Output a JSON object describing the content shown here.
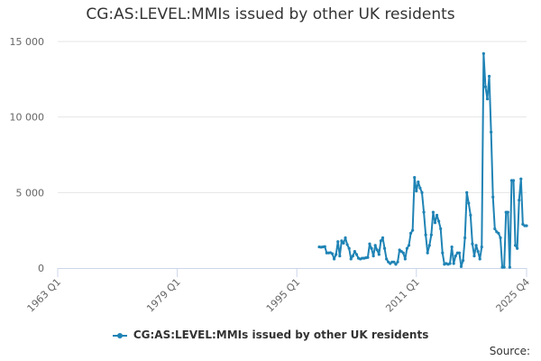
{
  "page": {
    "title": "CG:AS:LEVEL:MMIs issued by other UK residents",
    "credits": "Source:"
  },
  "colors": {
    "series": "#1f83b5",
    "grid": "#e6e6e6",
    "axis": "#ccd6eb"
  },
  "chart_data": {
    "type": "line",
    "title": "CG:AS:LEVEL:MMIs issued by other UK residents",
    "xlabel": "",
    "ylabel": "",
    "x_tick_labels": [
      "1963 Q1",
      "1979 Q1",
      "1995 Q1",
      "2011 Q1",
      "2025 Q4"
    ],
    "y_tick_labels": [
      "0",
      "5 000",
      "10 000",
      "15 000"
    ],
    "ylim": [
      0,
      15000
    ],
    "xlim": [
      "1963 Q1",
      "2025 Q4"
    ],
    "grid": true,
    "legend": "bottom-center",
    "series": [
      {
        "name": "CG:AS:LEVEL:MMIs issued by other UK residents",
        "points": [
          [
            "1998 Q1",
            1400
          ],
          [
            "1998 Q2",
            1380
          ],
          [
            "1998 Q3",
            1400
          ],
          [
            "1998 Q4",
            1420
          ],
          [
            "1999 Q1",
            1000
          ],
          [
            "1999 Q2",
            1000
          ],
          [
            "1999 Q3",
            1020
          ],
          [
            "1999 Q4",
            950
          ],
          [
            "2000 Q1",
            600
          ],
          [
            "2000 Q2",
            900
          ],
          [
            "2000 Q3",
            1750
          ],
          [
            "2000 Q4",
            800
          ],
          [
            "2001 Q1",
            1800
          ],
          [
            "2001 Q2",
            1650
          ],
          [
            "2001 Q3",
            2000
          ],
          [
            "2001 Q4",
            1550
          ],
          [
            "2002 Q1",
            1300
          ],
          [
            "2002 Q2",
            600
          ],
          [
            "2002 Q3",
            800
          ],
          [
            "2002 Q4",
            1100
          ],
          [
            "2003 Q1",
            900
          ],
          [
            "2003 Q2",
            650
          ],
          [
            "2003 Q3",
            600
          ],
          [
            "2003 Q4",
            650
          ],
          [
            "2004 Q1",
            650
          ],
          [
            "2004 Q2",
            680
          ],
          [
            "2004 Q3",
            700
          ],
          [
            "2004 Q4",
            1600
          ],
          [
            "2005 Q1",
            1300
          ],
          [
            "2005 Q2",
            800
          ],
          [
            "2005 Q3",
            1500
          ],
          [
            "2005 Q4",
            1200
          ],
          [
            "2006 Q1",
            900
          ],
          [
            "2006 Q2",
            1800
          ],
          [
            "2006 Q3",
            2000
          ],
          [
            "2006 Q4",
            1300
          ],
          [
            "2007 Q1",
            600
          ],
          [
            "2007 Q2",
            400
          ],
          [
            "2007 Q3",
            300
          ],
          [
            "2007 Q4",
            400
          ],
          [
            "2008 Q1",
            400
          ],
          [
            "2008 Q2",
            250
          ],
          [
            "2008 Q3",
            400
          ],
          [
            "2008 Q4",
            1200
          ],
          [
            "2009 Q1",
            1100
          ],
          [
            "2009 Q2",
            1000
          ],
          [
            "2009 Q3",
            600
          ],
          [
            "2009 Q4",
            1300
          ],
          [
            "2010 Q1",
            1500
          ],
          [
            "2010 Q2",
            2300
          ],
          [
            "2010 Q3",
            2500
          ],
          [
            "2010 Q4",
            6000
          ],
          [
            "2011 Q1",
            5100
          ],
          [
            "2011 Q2",
            5700
          ],
          [
            "2011 Q3",
            5300
          ],
          [
            "2011 Q4",
            5000
          ],
          [
            "2012 Q1",
            3700
          ],
          [
            "2012 Q2",
            2200
          ],
          [
            "2012 Q3",
            1000
          ],
          [
            "2012 Q4",
            1500
          ],
          [
            "2013 Q1",
            2200
          ],
          [
            "2013 Q2",
            3700
          ],
          [
            "2013 Q3",
            3000
          ],
          [
            "2013 Q4",
            3500
          ],
          [
            "2014 Q1",
            3100
          ],
          [
            "2014 Q2",
            2600
          ],
          [
            "2014 Q3",
            1000
          ],
          [
            "2014 Q4",
            250
          ],
          [
            "2015 Q1",
            300
          ],
          [
            "2015 Q2",
            250
          ],
          [
            "2015 Q3",
            300
          ],
          [
            "2015 Q4",
            1400
          ],
          [
            "2016 Q1",
            300
          ],
          [
            "2016 Q2",
            800
          ],
          [
            "2016 Q3",
            1000
          ],
          [
            "2016 Q4",
            1000
          ],
          [
            "2017 Q1",
            100
          ],
          [
            "2017 Q2",
            500
          ],
          [
            "2017 Q3",
            2000
          ],
          [
            "2017 Q4",
            5000
          ],
          [
            "2018 Q1",
            4300
          ],
          [
            "2018 Q2",
            3500
          ],
          [
            "2018 Q3",
            1600
          ],
          [
            "2018 Q4",
            800
          ],
          [
            "2019 Q1",
            1500
          ],
          [
            "2019 Q2",
            1100
          ],
          [
            "2019 Q3",
            600
          ],
          [
            "2019 Q4",
            1400
          ],
          [
            "2020 Q1",
            14200
          ],
          [
            "2020 Q2",
            12000
          ],
          [
            "2020 Q3",
            11200
          ],
          [
            "2020 Q4",
            12700
          ],
          [
            "2021 Q1",
            9000
          ],
          [
            "2021 Q2",
            4700
          ],
          [
            "2021 Q3",
            2600
          ],
          [
            "2021 Q4",
            2400
          ],
          [
            "2022 Q1",
            2300
          ],
          [
            "2022 Q2",
            2000
          ],
          [
            "2022 Q3",
            50
          ],
          [
            "2022 Q4",
            50
          ],
          [
            "2023 Q1",
            3700
          ],
          [
            "2023 Q2",
            3700
          ],
          [
            "2023 Q3",
            50
          ],
          [
            "2023 Q4",
            5800
          ],
          [
            "2024 Q1",
            5800
          ],
          [
            "2024 Q2",
            1500
          ],
          [
            "2024 Q3",
            1300
          ],
          [
            "2024 Q4",
            4500
          ],
          [
            "2025 Q1",
            5900
          ],
          [
            "2025 Q2",
            2900
          ],
          [
            "2025 Q3",
            2800
          ],
          [
            "2025 Q4",
            2800
          ]
        ]
      }
    ]
  }
}
